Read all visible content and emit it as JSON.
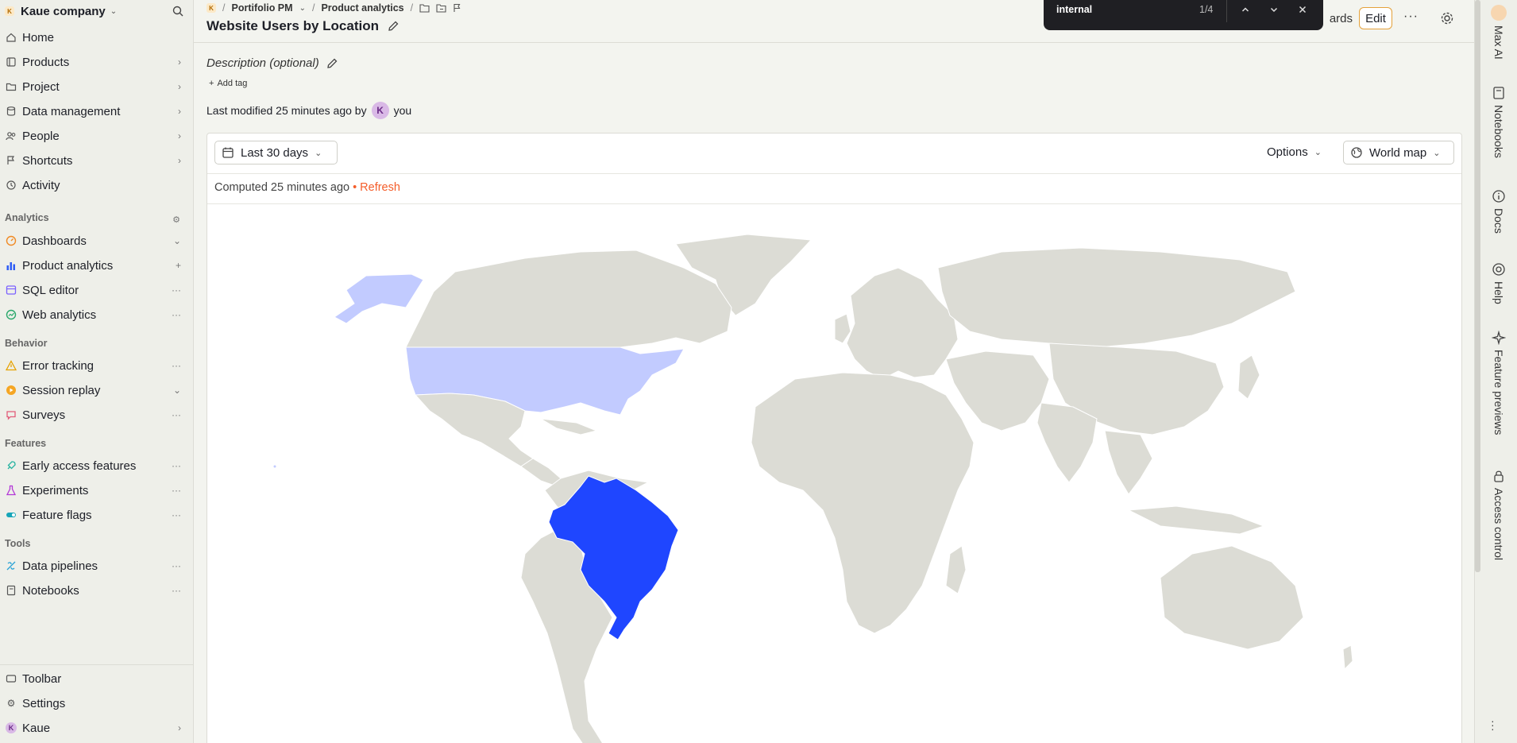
{
  "sidebar": {
    "team_logo": "K",
    "team_name": "Kaue company",
    "items": [
      {
        "label": "Home"
      },
      {
        "label": "Products"
      },
      {
        "label": "Project"
      },
      {
        "label": "Data management"
      },
      {
        "label": "People"
      },
      {
        "label": "Shortcuts"
      },
      {
        "label": "Activity"
      }
    ],
    "sections": {
      "analytics": "Analytics",
      "behavior": "Behavior",
      "features": "Features",
      "tools": "Tools"
    },
    "analytics_items": [
      {
        "label": "Dashboards"
      },
      {
        "label": "Product analytics"
      },
      {
        "label": "SQL editor"
      },
      {
        "label": "Web analytics"
      }
    ],
    "behavior_items": [
      {
        "label": "Error tracking"
      },
      {
        "label": "Session replay"
      },
      {
        "label": "Surveys"
      }
    ],
    "features_items": [
      {
        "label": "Early access features"
      },
      {
        "label": "Experiments"
      },
      {
        "label": "Feature flags"
      }
    ],
    "tools_items": [
      {
        "label": "Data pipelines"
      },
      {
        "label": "Notebooks"
      }
    ],
    "bottom_items": [
      {
        "label": "Toolbar"
      },
      {
        "label": "Settings"
      },
      {
        "label": "Kaue",
        "avatar": "K"
      }
    ]
  },
  "breadcrumbs": {
    "logo": "K",
    "sep": "/",
    "project": "Portifolio PM",
    "section": "Product analytics"
  },
  "header": {
    "title": "Website Users by Location",
    "partial_button": "ards",
    "edit_label": "Edit",
    "more_label": "···"
  },
  "findbar": {
    "query": "internal",
    "count": "1/4"
  },
  "insight": {
    "description_placeholder": "Description (optional)",
    "add_tag": "Add tag",
    "modified_prefix": "Last modified 25 minutes ago by",
    "modified_avatar": "K",
    "modified_user": "you",
    "date_range": "Last 30 days",
    "options_label": "Options",
    "viz_label": "World map",
    "computed_text": "Computed 25 minutes ago",
    "bullet": "•",
    "refresh_label": "Refresh"
  },
  "chart_data": {
    "type": "choropleth",
    "title": "",
    "colors": {
      "base": "#dcdcd5",
      "low": "#c2cbff",
      "high": "#1f46ff"
    },
    "regions": [
      {
        "name": "Brazil",
        "level": "high"
      },
      {
        "name": "United States",
        "level": "low"
      }
    ]
  },
  "right_rail": {
    "items": [
      {
        "label": "Max AI"
      },
      {
        "label": "Notebooks"
      },
      {
        "label": "Docs"
      },
      {
        "label": "Help"
      },
      {
        "label": "Feature previews"
      },
      {
        "label": "Access control"
      }
    ]
  }
}
